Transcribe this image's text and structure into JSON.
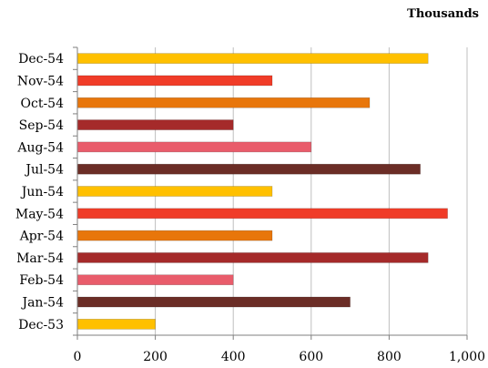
{
  "chart_data": {
    "type": "bar",
    "orientation": "horizontal",
    "categories": [
      "Dec-53",
      "Jan-54",
      "Feb-54",
      "Mar-54",
      "Apr-54",
      "May-54",
      "Jun-54",
      "Jul-54",
      "Aug-54",
      "Sep-54",
      "Oct-54",
      "Nov-54",
      "Dec-54"
    ],
    "values": [
      200,
      700,
      400,
      900,
      500,
      950,
      500,
      880,
      600,
      400,
      750,
      500,
      900
    ],
    "unit_label": "Thousands",
    "xlim": [
      0,
      1000
    ],
    "x_ticks": [
      "0",
      "200",
      "400",
      "600",
      "800",
      "1,000"
    ],
    "grid": "vertical",
    "colors": [
      "#ffc000",
      "#6b2d26",
      "#e95c6b",
      "#a52a2a",
      "#e8760b",
      "#f03c28",
      "#ffc000",
      "#6b2d26",
      "#e95c6b",
      "#a52a2a",
      "#e8760b",
      "#f03c28",
      "#ffc000"
    ]
  }
}
